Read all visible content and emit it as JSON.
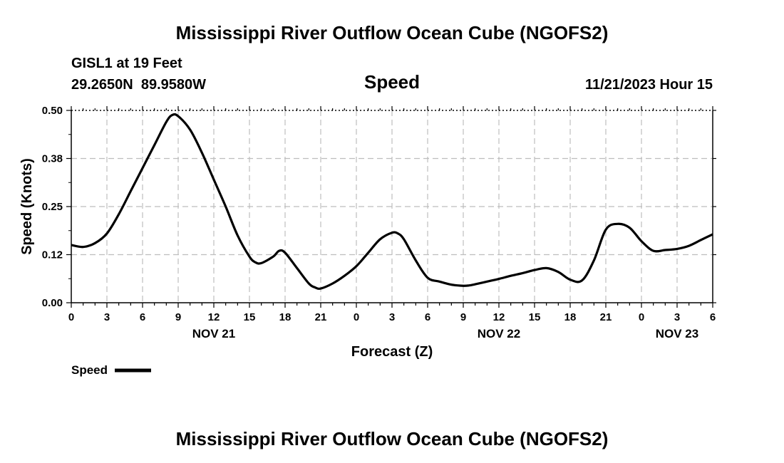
{
  "chart_data": {
    "type": "line",
    "title": "Mississippi River Outflow Ocean Cube (NGOFS2)",
    "subtitle": "Speed",
    "station": "GISL1 at 19 Feet",
    "location": "29.2650N  89.9580W",
    "datetime": "11/21/2023 Hour 15",
    "xlabel": "Forecast (Z)",
    "ylabel": "Speed (Knots)",
    "ylim": [
      0,
      0.5
    ],
    "yticks": [
      "0.00",
      "0.12",
      "0.25",
      "0.38",
      "0.50"
    ],
    "xlim_hours": [
      0,
      54
    ],
    "xticks": [
      "0",
      "3",
      "6",
      "9",
      "12",
      "15",
      "18",
      "21",
      "0",
      "3",
      "6",
      "9",
      "12",
      "15",
      "18",
      "21",
      "0",
      "3",
      "6"
    ],
    "date_labels": [
      {
        "label": "NOV 21",
        "hour": 12
      },
      {
        "label": "NOV 22",
        "hour": 36
      },
      {
        "label": "NOV 23",
        "hour": 51
      }
    ],
    "grid": true,
    "legend_position": "bottom-left",
    "series": [
      {
        "name": "Speed",
        "color": "#000000",
        "x": [
          0,
          1,
          2,
          3,
          4,
          5,
          6,
          7,
          8,
          8.5,
          9,
          10,
          11,
          12,
          13,
          14,
          15,
          15.5,
          16,
          17,
          17.5,
          18,
          19,
          20,
          20.5,
          21,
          22,
          23,
          24,
          25,
          26,
          27,
          27.5,
          28,
          29,
          30,
          31,
          32,
          33,
          33.5,
          34,
          35,
          36,
          37,
          38,
          39,
          40,
          41,
          42,
          43,
          44,
          45,
          46,
          47,
          48,
          49,
          50,
          51,
          52,
          53,
          54
        ],
        "y": [
          0.15,
          0.145,
          0.155,
          0.18,
          0.23,
          0.29,
          0.35,
          0.41,
          0.47,
          0.488,
          0.485,
          0.45,
          0.39,
          0.32,
          0.25,
          0.175,
          0.12,
          0.105,
          0.103,
          0.12,
          0.135,
          0.13,
          0.09,
          0.05,
          0.04,
          0.037,
          0.05,
          0.07,
          0.095,
          0.13,
          0.165,
          0.182,
          0.18,
          0.165,
          0.11,
          0.065,
          0.055,
          0.047,
          0.044,
          0.045,
          0.048,
          0.055,
          0.062,
          0.07,
          0.077,
          0.085,
          0.09,
          0.08,
          0.06,
          0.058,
          0.11,
          0.19,
          0.205,
          0.195,
          0.16,
          0.135,
          0.137,
          0.14,
          0.148,
          0.163,
          0.178
        ]
      }
    ]
  },
  "footer_title": "Mississippi River Outflow Ocean Cube (NGOFS2)"
}
